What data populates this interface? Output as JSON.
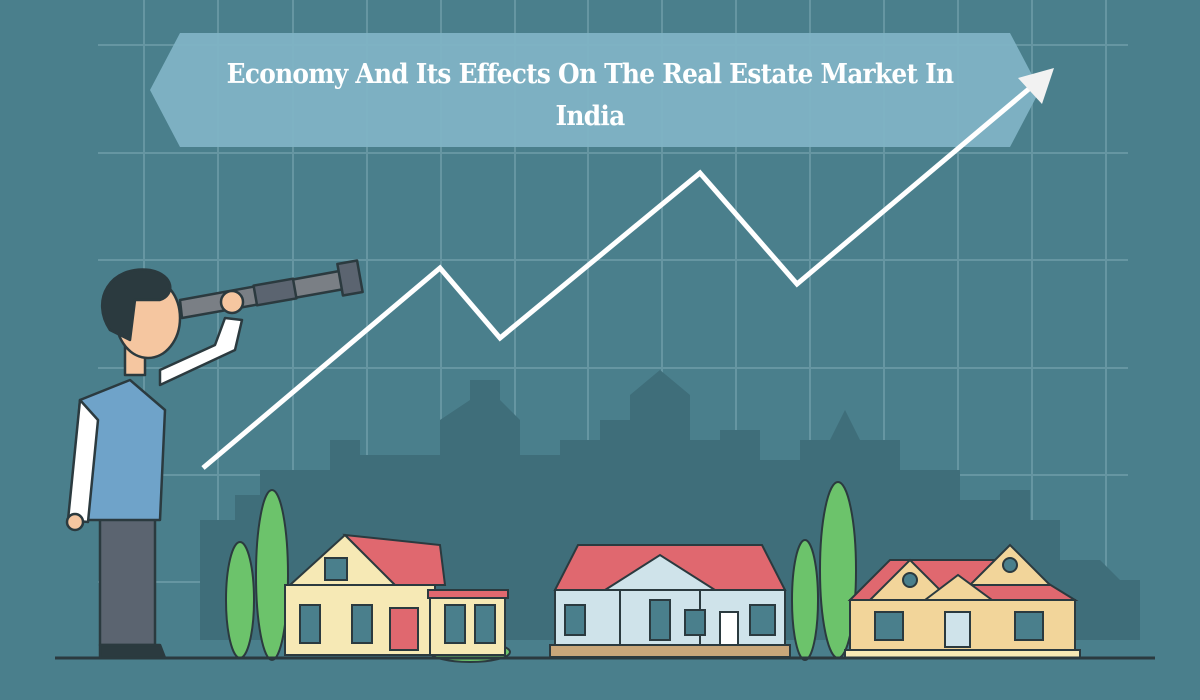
{
  "banner": {
    "title": "Economy And Its Effects On The Real Estate Market In India"
  },
  "colors": {
    "background": "#4a7f8c",
    "banner": "#7fb3c5",
    "grid": "#7aa7b2",
    "trend_line": "#ffffff",
    "skyline": "#3f6e7a",
    "tree": "#6cc36b",
    "roof": "#e0686f"
  },
  "illustration": {
    "icons": [
      "man-with-telescope",
      "trend-arrow-up",
      "house",
      "tree",
      "city-skyline"
    ]
  }
}
